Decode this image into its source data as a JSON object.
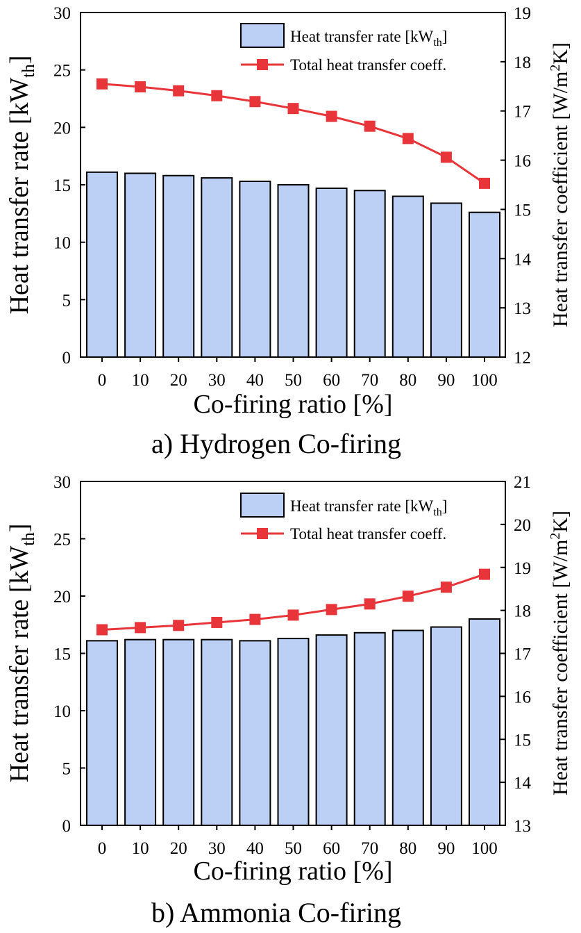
{
  "figure": {
    "panels": [
      {
        "caption": "a) Hydrogen Co-firing",
        "y_label_main": "Heat transfer rate [kW",
        "y_label_sub": "th",
        "y_label_close": "]",
        "y2_label_main": "Heat transfer coefficient [W/m",
        "y2_label_sup": "2",
        "y2_label_close": "K]",
        "x_label": "Co-firing ratio [%]",
        "legend": {
          "bar_label_main": "Heat transfer rate [kW",
          "bar_label_sub": "th",
          "bar_label_close": "]",
          "line_label": "Total heat transfer coeff."
        }
      },
      {
        "caption": "b) Ammonia Co-firing",
        "y_label_main": "Heat transfer rate [kW",
        "y_label_sub": "th",
        "y_label_close": "]",
        "y2_label_main": "Heat transfer coefficient [W/m",
        "y2_label_sup": "2",
        "y2_label_close": "K]",
        "x_label": "Co-firing ratio [%]",
        "legend": {
          "bar_label_main": "Heat transfer rate [kW",
          "bar_label_sub": "th",
          "bar_label_close": "]",
          "line_label": "Total heat transfer coeff."
        }
      }
    ]
  },
  "colors": {
    "bar_fill": "#bccff5",
    "bar_stroke": "#000000",
    "line": "#e8353a",
    "marker": "#e8353a"
  },
  "chart_data": [
    {
      "type": "bar",
      "title": "a) Hydrogen Co-firing",
      "categories": [
        "0",
        "10",
        "20",
        "30",
        "40",
        "50",
        "60",
        "70",
        "80",
        "90",
        "100"
      ],
      "xlabel": "Co-firing ratio [%]",
      "ylabel": "Heat transfer rate [kWth]",
      "y2label": "Heat transfer coefficient [W/m2K]",
      "ylim": [
        0,
        30
      ],
      "yticks": [
        0,
        5,
        10,
        15,
        20,
        25,
        30
      ],
      "y2lim": [
        12,
        19
      ],
      "y2ticks": [
        12,
        13,
        14,
        15,
        16,
        17,
        18,
        19
      ],
      "legend_position": "top-right",
      "grid": false,
      "series": [
        {
          "name": "Heat transfer rate [kWth]",
          "type": "bar",
          "axis": "left",
          "values": [
            16.1,
            16.0,
            15.8,
            15.6,
            15.3,
            15.0,
            14.7,
            14.5,
            14.0,
            13.4,
            12.6
          ]
        },
        {
          "name": "Total heat transfer coeff.",
          "type": "line",
          "axis": "right",
          "values": [
            17.55,
            17.49,
            17.41,
            17.31,
            17.19,
            17.05,
            16.89,
            16.69,
            16.44,
            16.06,
            15.53
          ]
        }
      ]
    },
    {
      "type": "bar",
      "title": "b) Ammonia Co-firing",
      "categories": [
        "0",
        "10",
        "20",
        "30",
        "40",
        "50",
        "60",
        "70",
        "80",
        "90",
        "100"
      ],
      "xlabel": "Co-firing ratio [%]",
      "ylabel": "Heat transfer rate [kWth]",
      "y2label": "Heat transfer coefficient [W/m2K]",
      "ylim": [
        0,
        30
      ],
      "yticks": [
        0,
        5,
        10,
        15,
        20,
        25,
        30
      ],
      "y2lim": [
        13,
        21
      ],
      "y2ticks": [
        13,
        14,
        15,
        16,
        17,
        18,
        19,
        20,
        21
      ],
      "legend_position": "top-right",
      "grid": false,
      "series": [
        {
          "name": "Heat transfer rate [kWth]",
          "type": "bar",
          "axis": "left",
          "values": [
            16.1,
            16.2,
            16.2,
            16.2,
            16.1,
            16.3,
            16.6,
            16.8,
            17.0,
            17.3,
            18.0
          ]
        },
        {
          "name": "Total heat transfer coeff.",
          "type": "line",
          "axis": "right",
          "values": [
            17.55,
            17.6,
            17.65,
            17.72,
            17.79,
            17.89,
            18.02,
            18.15,
            18.33,
            18.54,
            18.84
          ]
        }
      ]
    }
  ]
}
